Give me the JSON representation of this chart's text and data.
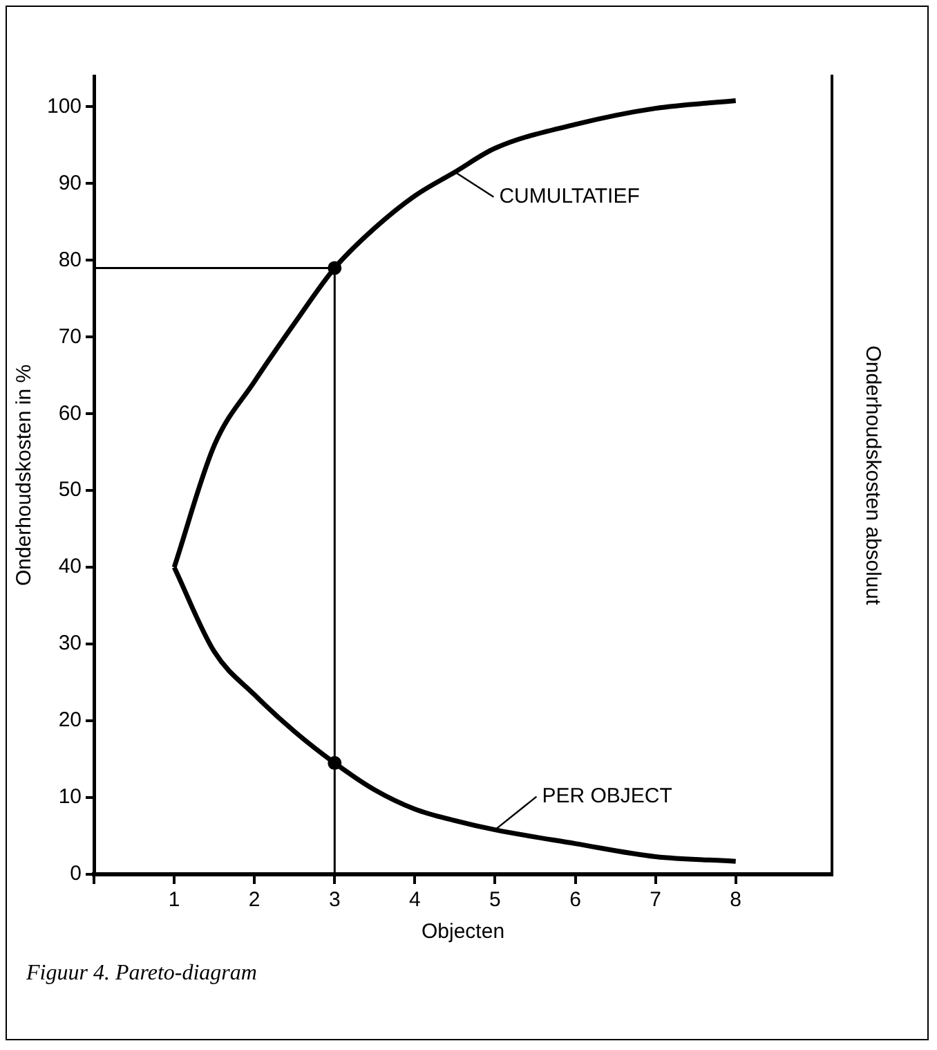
{
  "chart_data": {
    "type": "line",
    "xlabel": "Objecten",
    "ylabel": "Onderhoudskosten in %",
    "y2label": "Onderhoudskosten absoluut",
    "x": [
      1,
      1.5,
      2,
      2.5,
      3,
      3.5,
      4,
      4.5,
      5,
      6,
      7,
      8
    ],
    "series": [
      {
        "name": "CUMULTATIEF",
        "color": "#000000",
        "values": [
          40,
          55.9,
          64.2,
          71.8,
          79,
          84.2,
          88.4,
          91.5,
          94.6,
          97.7,
          99.8,
          100.8
        ]
      },
      {
        "name": "PER OBJECT",
        "color": "#000000",
        "values": [
          40,
          29,
          23.4,
          18.6,
          14.5,
          11,
          8.5,
          7,
          5.8,
          4,
          2.3,
          1.7
        ]
      },
      {
        "type": "scatter",
        "color": "#000000",
        "marker": "circle",
        "x": [
          3,
          3
        ],
        "values": [
          79,
          14.5
        ]
      }
    ],
    "xlim": [
      0,
      9.2
    ],
    "xticks": [
      {
        "value": 0,
        "label": null
      },
      1,
      2,
      3,
      4,
      5,
      6,
      7,
      8
    ],
    "ylim": [
      0,
      104
    ],
    "yticks": [
      0,
      10,
      20,
      30,
      40,
      50,
      60,
      70,
      80,
      90,
      100
    ],
    "ref_lines": [
      {
        "axis": "x",
        "value": 3,
        "color": "#000000"
      },
      {
        "axis": "y",
        "value": 79,
        "color": "#000000"
      }
    ],
    "grid": false,
    "marker": "none",
    "line_style": "solid",
    "annotations": [
      "Figuur 4. Pareto-diagram"
    ]
  }
}
